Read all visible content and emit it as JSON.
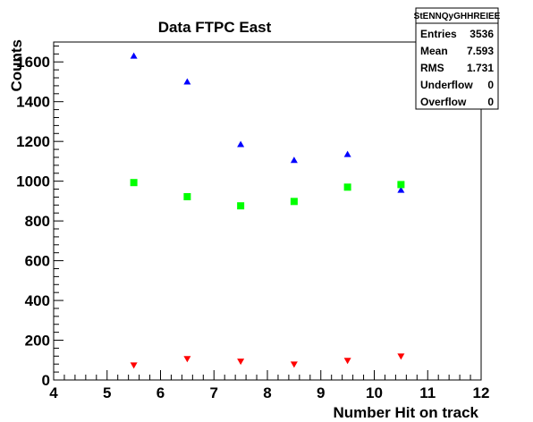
{
  "chart_data": {
    "type": "scatter",
    "title": "Data FTPC East",
    "xlabel": "Number Hit on track",
    "ylabel": "Counts",
    "xlim": [
      4,
      12
    ],
    "ylim": [
      0,
      1700
    ],
    "x_ticks": [
      4,
      5,
      6,
      7,
      8,
      9,
      10,
      11,
      12
    ],
    "y_ticks": [
      0,
      200,
      400,
      600,
      800,
      1000,
      1200,
      1400,
      1600
    ],
    "grid": false,
    "series": [
      {
        "marker": "triangle-up",
        "color": "#0000ff",
        "x": [
          5.5,
          6.5,
          7.5,
          8.5,
          9.5,
          10.5
        ],
        "values": [
          1630,
          1500,
          1185,
          1105,
          1135,
          955
        ]
      },
      {
        "marker": "square",
        "color": "#00ff00",
        "x": [
          5.5,
          6.5,
          7.5,
          8.5,
          9.5,
          10.5
        ],
        "values": [
          993,
          922,
          876,
          898,
          970,
          983
        ]
      },
      {
        "marker": "triangle-down",
        "color": "#ff0000",
        "x": [
          5.5,
          6.5,
          7.5,
          8.5,
          9.5,
          10.5
        ],
        "values": [
          75,
          107,
          94,
          79,
          98,
          120
        ]
      }
    ],
    "stats_box": {
      "header": "StENNQyGHHREIEE",
      "rows": [
        {
          "label": "Entries",
          "value": "3536"
        },
        {
          "label": "Mean",
          "value": "7.593"
        },
        {
          "label": "RMS",
          "value": "1.731"
        },
        {
          "label": "Underflow",
          "value": "0"
        },
        {
          "label": "Overflow",
          "value": "0"
        }
      ]
    }
  }
}
